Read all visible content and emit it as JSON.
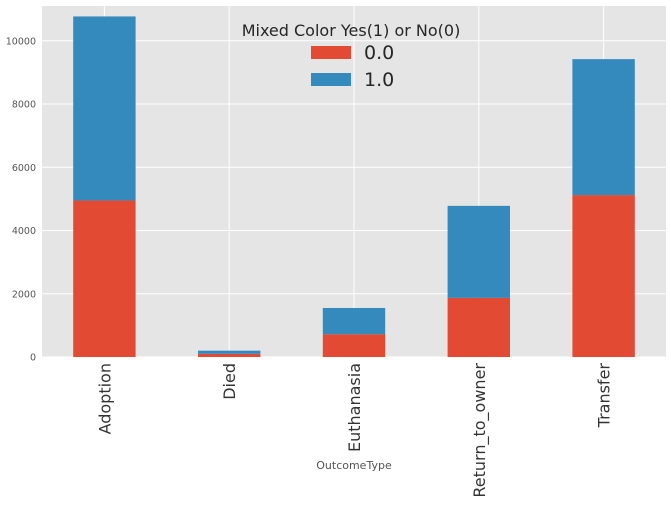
{
  "chart_data": {
    "type": "bar",
    "stacked": true,
    "categories": [
      "Adoption",
      "Died",
      "Euthanasia",
      "Return_to_owner",
      "Transfer"
    ],
    "series": [
      {
        "name": "0.0",
        "color": "#E24A33",
        "values": [
          4950,
          100,
          720,
          1870,
          5120
        ]
      },
      {
        "name": "1.0",
        "color": "#348ABD",
        "values": [
          5820,
          100,
          830,
          2910,
          4300
        ]
      }
    ],
    "xlabel": "OutcomeType",
    "ylabel": "",
    "ylim": [
      0,
      11100
    ],
    "yticks": [
      0,
      2000,
      4000,
      6000,
      8000,
      10000
    ],
    "legend": {
      "title": "Mixed Color Yes(1) or No(0)",
      "placement": "top-center"
    },
    "grid": true,
    "style": {
      "background": "#E5E5E5",
      "grid_color": "#FFFFFF",
      "text_color": "#555555"
    }
  }
}
